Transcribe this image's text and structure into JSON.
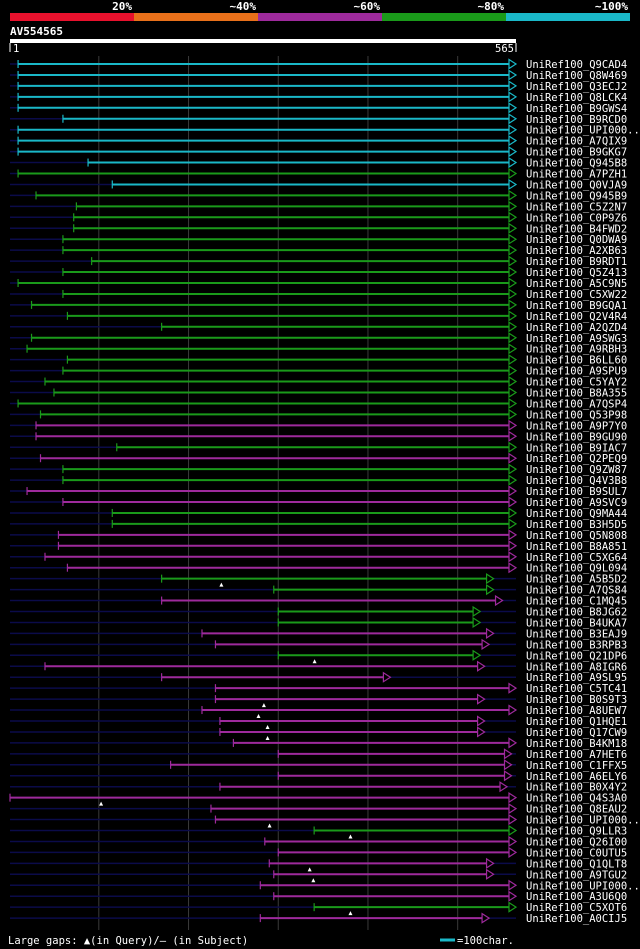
{
  "legend": {
    "segments": [
      {
        "label": "20%",
        "color": "#e8112d"
      },
      {
        "label": "~40%",
        "color": "#e8701a"
      },
      {
        "label": "~60%",
        "color": "#9e2a9c"
      },
      {
        "label": "~80%",
        "color": "#1a9a1a"
      },
      {
        "label": "~100%",
        "color": "#1ab8c8"
      }
    ]
  },
  "query": {
    "id": "AV554565",
    "start_label": "1",
    "end_label": "565",
    "length": 565
  },
  "colors": {
    "background": "#000000",
    "dark_line": "#0b0b4a",
    "grid": "#3a3a3a"
  },
  "hits": [
    {
      "name": "UniRef100_Q9CAD4",
      "color": "cyan",
      "qs": 10,
      "qe": 565,
      "lt": 0
    },
    {
      "name": "UniRef100_Q8W469",
      "color": "cyan",
      "qs": 10,
      "qe": 565,
      "lt": 0
    },
    {
      "name": "UniRef100_Q3ECJ2",
      "color": "cyan",
      "qs": 10,
      "qe": 565,
      "lt": 0
    },
    {
      "name": "UniRef100_Q8LCK4",
      "color": "cyan",
      "qs": 10,
      "qe": 565,
      "lt": 0
    },
    {
      "name": "UniRef100_B9GWS4",
      "color": "cyan",
      "qs": 10,
      "qe": 565,
      "lt": 0
    },
    {
      "name": "UniRef100_B9RCD0",
      "color": "cyan",
      "qs": 60,
      "qe": 565,
      "lt": 0
    },
    {
      "name": "UniRef100_UPI000..",
      "color": "cyan",
      "qs": 10,
      "qe": 565,
      "lt": 0
    },
    {
      "name": "UniRef100_A7QIX9",
      "color": "cyan",
      "qs": 10,
      "qe": 565,
      "lt": 0
    },
    {
      "name": "UniRef100_B9GKG7",
      "color": "cyan",
      "qs": 10,
      "qe": 565,
      "lt": 0
    },
    {
      "name": "UniRef100_Q945B8",
      "color": "cyan",
      "qs": 88,
      "qe": 565,
      "lt": 0
    },
    {
      "name": "UniRef100_A7PZH1",
      "color": "green",
      "qs": 10,
      "qe": 565,
      "lt": 0
    },
    {
      "name": "UniRef100_Q0VJA9",
      "color": "cyan",
      "qs": 115,
      "qe": 565,
      "lt": 0
    },
    {
      "name": "UniRef100_Q945B9",
      "color": "green",
      "qs": 30,
      "qe": 565,
      "lt": 0
    },
    {
      "name": "UniRef100_C5Z2N7",
      "color": "green",
      "qs": 75,
      "qe": 565,
      "lt": 0
    },
    {
      "name": "UniRef100_C0P9Z6",
      "color": "green",
      "qs": 72,
      "qe": 565,
      "lt": 0
    },
    {
      "name": "UniRef100_B4FWD2",
      "color": "green",
      "qs": 72,
      "qe": 565,
      "lt": 0
    },
    {
      "name": "UniRef100_Q0DWA9",
      "color": "green",
      "qs": 60,
      "qe": 565,
      "lt": 0
    },
    {
      "name": "UniRef100_A2XB63",
      "color": "green",
      "qs": 60,
      "qe": 565,
      "lt": 0
    },
    {
      "name": "UniRef100_B9RDT1",
      "color": "green",
      "qs": 92,
      "qe": 565,
      "lt": 0
    },
    {
      "name": "UniRef100_Q5Z413",
      "color": "green",
      "qs": 60,
      "qe": 565,
      "lt": 0
    },
    {
      "name": "UniRef100_A5C9N5",
      "color": "green",
      "qs": 10,
      "qe": 565,
      "lt": 0
    },
    {
      "name": "UniRef100_C5XW22",
      "color": "green",
      "qs": 60,
      "qe": 565,
      "lt": 0
    },
    {
      "name": "UniRef100_B9GQA1",
      "color": "green",
      "qs": 25,
      "qe": 565,
      "lt": 0
    },
    {
      "name": "UniRef100_Q2V4R4",
      "color": "green",
      "qs": 65,
      "qe": 565,
      "lt": 0
    },
    {
      "name": "UniRef100_A2QZD4",
      "color": "green",
      "qs": 170,
      "qe": 565,
      "lt": 0
    },
    {
      "name": "UniRef100_A9SWG3",
      "color": "green",
      "qs": 25,
      "qe": 565,
      "lt": 0
    },
    {
      "name": "UniRef100_A9RBH3",
      "color": "green",
      "qs": 20,
      "qe": 565,
      "lt": 0
    },
    {
      "name": "UniRef100_B6LL60",
      "color": "green",
      "qs": 65,
      "qe": 565,
      "lt": 0
    },
    {
      "name": "UniRef100_A9SPU9",
      "color": "green",
      "qs": 60,
      "qe": 565,
      "lt": 0
    },
    {
      "name": "UniRef100_C5YAY2",
      "color": "green",
      "qs": 40,
      "qe": 565,
      "lt": 0
    },
    {
      "name": "UniRef100_B8A355",
      "color": "green",
      "qs": 50,
      "qe": 565,
      "lt": 0
    },
    {
      "name": "UniRef100_A7QSP4",
      "color": "green",
      "qs": 10,
      "qe": 565,
      "lt": 0
    },
    {
      "name": "UniRef100_Q53P98",
      "color": "green",
      "qs": 35,
      "qe": 565,
      "lt": 0
    },
    {
      "name": "UniRef100_A9P7Y0",
      "color": "purple",
      "qs": 30,
      "qe": 565,
      "lt": 0
    },
    {
      "name": "UniRef100_B9GU90",
      "color": "purple",
      "qs": 30,
      "qe": 565,
      "lt": 0
    },
    {
      "name": "UniRef100_B9IAC7",
      "color": "green",
      "qs": 120,
      "qe": 565,
      "lt": 0
    },
    {
      "name": "UniRef100_Q2PEQ9",
      "color": "purple",
      "qs": 35,
      "qe": 565,
      "lt": 0
    },
    {
      "name": "UniRef100_Q9ZW87",
      "color": "green",
      "qs": 60,
      "qe": 565,
      "lt": 0
    },
    {
      "name": "UniRef100_Q4V3B8",
      "color": "green",
      "qs": 60,
      "qe": 565,
      "lt": 0
    },
    {
      "name": "UniRef100_B9SUL7",
      "color": "purple",
      "qs": 20,
      "qe": 565,
      "lt": 0
    },
    {
      "name": "UniRef100_A9SVC9",
      "color": "purple",
      "qs": 60,
      "qe": 565,
      "lt": 0
    },
    {
      "name": "UniRef100_Q9MA44",
      "color": "green",
      "qs": 115,
      "qe": 565,
      "lt": 0
    },
    {
      "name": "UniRef100_B3H5D5",
      "color": "green",
      "qs": 115,
      "qe": 565,
      "lt": 0
    },
    {
      "name": "UniRef100_Q5N808",
      "color": "purple",
      "qs": 55,
      "qe": 565,
      "lt": 0
    },
    {
      "name": "UniRef100_B8A851",
      "color": "purple",
      "qs": 55,
      "qe": 565,
      "lt": 0
    },
    {
      "name": "UniRef100_C5XG64",
      "color": "purple",
      "qs": 40,
      "qe": 565,
      "lt": 0
    },
    {
      "name": "UniRef100_Q9L094",
      "color": "purple",
      "qs": 65,
      "qe": 565,
      "lt": 0
    },
    {
      "name": "UniRef100_A5B5D2",
      "color": "green",
      "qs": 170,
      "qe": 540,
      "lt": 1
    },
    {
      "name": "UniRef100_A7QS84",
      "color": "green",
      "qs": 295,
      "qe": 540,
      "lt": 0
    },
    {
      "name": "UniRef100_C1MQ45",
      "color": "purple",
      "qs": 170,
      "qe": 550,
      "lt": 0
    },
    {
      "name": "UniRef100_B8JG62",
      "color": "green",
      "qs": 300,
      "qe": 525,
      "lt": 0
    },
    {
      "name": "UniRef100_B4UKA7",
      "color": "green",
      "qs": 300,
      "qe": 525,
      "lt": 0
    },
    {
      "name": "UniRef100_B3EAJ9",
      "color": "purple",
      "qs": 215,
      "qe": 540,
      "lt": 0
    },
    {
      "name": "UniRef100_B3RPB3",
      "color": "purple",
      "qs": 230,
      "qe": 535,
      "lt": 0
    },
    {
      "name": "UniRef100_Q21DP6",
      "color": "green",
      "qs": 300,
      "qe": 525,
      "lt": 1
    },
    {
      "name": "UniRef100_A8IGR6",
      "color": "purple",
      "qs": 40,
      "qe": 530,
      "lt": 0
    },
    {
      "name": "UniRef100_A9SL95",
      "color": "purple",
      "qs": 170,
      "qe": 425,
      "lt": 0
    },
    {
      "name": "UniRef100_C5TC41",
      "color": "purple",
      "qs": 230,
      "qe": 565,
      "lt": 0
    },
    {
      "name": "UniRef100_B0S9T3",
      "color": "purple",
      "qs": 230,
      "qe": 530,
      "lt": 1
    },
    {
      "name": "UniRef100_A8UEW7",
      "color": "purple",
      "qs": 215,
      "qe": 565,
      "lt": 1
    },
    {
      "name": "UniRef100_Q1HQE1",
      "color": "purple",
      "qs": 235,
      "qe": 530,
      "lt": 1
    },
    {
      "name": "UniRef100_Q17CW9",
      "color": "purple",
      "qs": 235,
      "qe": 530,
      "lt": 1
    },
    {
      "name": "UniRef100_B4KM18",
      "color": "purple",
      "qs": 250,
      "qe": 565,
      "lt": 0
    },
    {
      "name": "UniRef100_A7HET6",
      "color": "purple",
      "qs": 300,
      "qe": 560,
      "lt": 0
    },
    {
      "name": "UniRef100_C1FFX5",
      "color": "purple",
      "qs": 180,
      "qe": 560,
      "lt": 0
    },
    {
      "name": "UniRef100_A6ELY6",
      "color": "purple",
      "qs": 300,
      "qe": 560,
      "lt": 0
    },
    {
      "name": "UniRef100_B0X4Y2",
      "color": "purple",
      "qs": 235,
      "qe": 555,
      "lt": 0
    },
    {
      "name": "UniRef100_Q4S3A0",
      "color": "purple",
      "qs": 1,
      "qe": 565,
      "lt": 1
    },
    {
      "name": "UniRef100_Q8EAU2",
      "color": "purple",
      "qs": 225,
      "qe": 565,
      "lt": 0
    },
    {
      "name": "UniRef100_UPI000..",
      "color": "purple",
      "qs": 230,
      "qe": 565,
      "lt": 1
    },
    {
      "name": "UniRef100_Q9LLR3",
      "color": "green",
      "qs": 340,
      "qe": 565,
      "lt": 1
    },
    {
      "name": "UniRef100_Q26I00",
      "color": "purple",
      "qs": 285,
      "qe": 565,
      "lt": 0
    },
    {
      "name": "UniRef100_C0UTU5",
      "color": "purple",
      "qs": 300,
      "qe": 565,
      "lt": 0
    },
    {
      "name": "UniRef100_Q1QLT8",
      "color": "purple",
      "qs": 290,
      "qe": 540,
      "lt": 1
    },
    {
      "name": "UniRef100_A9TGU2",
      "color": "purple",
      "qs": 295,
      "qe": 540,
      "lt": 1
    },
    {
      "name": "UniRef100_UPI000..",
      "color": "purple",
      "qs": 280,
      "qe": 565,
      "lt": 0
    },
    {
      "name": "UniRef100_A3U6Q0",
      "color": "purple",
      "qs": 295,
      "qe": 565,
      "lt": 0
    },
    {
      "name": "UniRef100_C5XOT6",
      "color": "green",
      "qs": 340,
      "qe": 565,
      "lt": 1
    },
    {
      "name": "UniRef100_A0CIJ5",
      "color": "purple",
      "qs": 280,
      "qe": 535,
      "lt": 0
    }
  ],
  "footer": {
    "gaps_text": "Large gaps: ▲(in Query)/– (in Subject)",
    "scale_text": "=100char."
  }
}
